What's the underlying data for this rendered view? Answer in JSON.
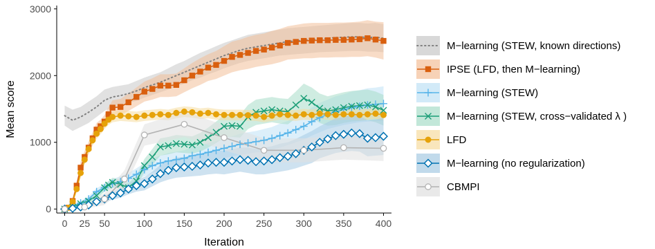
{
  "chart_data": {
    "type": "line",
    "title": "",
    "xlabel": "Iteration",
    "ylabel": "Mean score",
    "xlim": [
      -10,
      410
    ],
    "ylim": [
      -60,
      3050
    ],
    "x_ticks": [
      0,
      25,
      50,
      100,
      150,
      200,
      250,
      300,
      350,
      400
    ],
    "y_ticks": [
      0,
      1000,
      2000,
      3000
    ],
    "grid": false,
    "legend_position": "right",
    "series": [
      {
        "name": "M−learning (STEW, known directions)",
        "color": "#808080",
        "style": "dotted",
        "marker": "none",
        "band": "#c8c8c8",
        "x": [
          0,
          10,
          20,
          30,
          40,
          50,
          60,
          70,
          80,
          90,
          100,
          110,
          120,
          130,
          140,
          150,
          160,
          170,
          180,
          190,
          200,
          210,
          220,
          230,
          240,
          250,
          260,
          270,
          280,
          290,
          300,
          310,
          320,
          330,
          340,
          350,
          360,
          370,
          380,
          390,
          400
        ],
        "y": [
          1400,
          1330,
          1380,
          1450,
          1530,
          1630,
          1680,
          1700,
          1730,
          1770,
          1820,
          1860,
          1900,
          1950,
          2000,
          2050,
          2100,
          2150,
          2200,
          2250,
          2300,
          2340,
          2380,
          2410,
          2430,
          2450,
          2470,
          2490,
          2510,
          2520,
          2530,
          2540,
          2550,
          2560,
          2570,
          2575,
          2580,
          2580,
          2570,
          2575,
          2560
        ],
        "lower": [
          1250,
          1170,
          1230,
          1290,
          1380,
          1470,
          1530,
          1560,
          1590,
          1620,
          1670,
          1710,
          1750,
          1790,
          1840,
          1880,
          1930,
          1970,
          2020,
          2060,
          2110,
          2150,
          2190,
          2220,
          2240,
          2260,
          2280,
          2300,
          2310,
          2320,
          2330,
          2340,
          2350,
          2355,
          2360,
          2365,
          2370,
          2370,
          2360,
          2360,
          2350
        ],
        "upper": [
          1550,
          1490,
          1530,
          1610,
          1690,
          1790,
          1830,
          1850,
          1870,
          1920,
          1970,
          2010,
          2050,
          2110,
          2170,
          2220,
          2280,
          2340,
          2390,
          2440,
          2490,
          2530,
          2570,
          2610,
          2630,
          2650,
          2670,
          2690,
          2710,
          2720,
          2730,
          2740,
          2750,
          2760,
          2770,
          2780,
          2790,
          2790,
          2780,
          2790,
          2770
        ]
      },
      {
        "name": "IPSE (LFD, then M−learning)",
        "color": "#d95f0e",
        "style": "solid",
        "marker": "square",
        "band": "#f3bf99",
        "x": [
          0,
          5,
          10,
          15,
          20,
          25,
          30,
          35,
          40,
          45,
          50,
          55,
          60,
          70,
          80,
          90,
          100,
          110,
          120,
          130,
          140,
          150,
          160,
          170,
          180,
          190,
          200,
          210,
          220,
          230,
          240,
          250,
          260,
          270,
          280,
          290,
          300,
          310,
          320,
          330,
          340,
          350,
          360,
          370,
          380,
          390,
          400
        ],
        "y": [
          0,
          20,
          120,
          350,
          620,
          780,
          920,
          1060,
          1190,
          1240,
          1310,
          1420,
          1520,
          1530,
          1600,
          1680,
          1760,
          1800,
          1850,
          1850,
          1860,
          1930,
          2000,
          2060,
          2120,
          2160,
          2220,
          2280,
          2310,
          2340,
          2370,
          2390,
          2420,
          2450,
          2490,
          2505,
          2520,
          2525,
          2530,
          2530,
          2535,
          2535,
          2540,
          2545,
          2560,
          2540,
          2520
        ],
        "lower": [
          0,
          10,
          80,
          280,
          530,
          690,
          830,
          970,
          1090,
          1140,
          1210,
          1310,
          1410,
          1410,
          1470,
          1540,
          1610,
          1640,
          1680,
          1680,
          1690,
          1750,
          1810,
          1860,
          1920,
          1950,
          2000,
          2050,
          2080,
          2100,
          2130,
          2150,
          2170,
          2200,
          2240,
          2250,
          2260,
          2260,
          2270,
          2270,
          2275,
          2275,
          2280,
          2280,
          2290,
          2270,
          2240
        ],
        "upper": [
          0,
          30,
          160,
          420,
          710,
          870,
          1010,
          1150,
          1290,
          1340,
          1410,
          1530,
          1630,
          1650,
          1730,
          1820,
          1910,
          1960,
          2020,
          2020,
          2030,
          2110,
          2190,
          2260,
          2320,
          2370,
          2440,
          2510,
          2540,
          2580,
          2610,
          2630,
          2670,
          2700,
          2740,
          2760,
          2780,
          2790,
          2790,
          2790,
          2795,
          2795,
          2800,
          2810,
          2830,
          2810,
          2800
        ]
      },
      {
        "name": "M−learning (STEW)",
        "color": "#56b4e9",
        "style": "solid",
        "marker": "plus",
        "band": "#bfe1f5",
        "x": [
          0,
          10,
          20,
          30,
          40,
          50,
          60,
          70,
          80,
          90,
          100,
          110,
          120,
          130,
          140,
          150,
          160,
          170,
          180,
          190,
          200,
          210,
          220,
          230,
          240,
          250,
          260,
          270,
          280,
          290,
          300,
          310,
          320,
          330,
          340,
          350,
          360,
          370,
          380,
          390,
          400
        ],
        "y": [
          0,
          40,
          90,
          150,
          260,
          320,
          380,
          410,
          460,
          520,
          590,
          650,
          690,
          720,
          740,
          760,
          800,
          820,
          850,
          880,
          910,
          940,
          970,
          990,
          1010,
          1030,
          1060,
          1100,
          1140,
          1190,
          1240,
          1310,
          1370,
          1420,
          1460,
          1490,
          1520,
          1540,
          1560,
          1570,
          1580
        ],
        "lower": [
          0,
          20,
          60,
          110,
          210,
          260,
          310,
          330,
          380,
          430,
          490,
          540,
          580,
          600,
          620,
          640,
          670,
          690,
          710,
          740,
          760,
          790,
          810,
          830,
          850,
          860,
          890,
          920,
          960,
          1000,
          1040,
          1100,
          1150,
          1200,
          1230,
          1260,
          1280,
          1300,
          1310,
          1320,
          1320
        ],
        "upper": [
          0,
          60,
          120,
          190,
          310,
          380,
          450,
          490,
          540,
          610,
          690,
          760,
          800,
          840,
          860,
          880,
          930,
          950,
          990,
          1020,
          1060,
          1090,
          1130,
          1150,
          1170,
          1200,
          1230,
          1280,
          1320,
          1380,
          1440,
          1520,
          1590,
          1640,
          1690,
          1720,
          1760,
          1780,
          1810,
          1820,
          1840
        ]
      },
      {
        "name": "M−learning (STEW, cross−validated λ )",
        "color": "#1b9e77",
        "style": "solid",
        "marker": "x",
        "band": "#a8ddc9",
        "x": [
          0,
          10,
          20,
          30,
          40,
          50,
          55,
          60,
          70,
          80,
          90,
          100,
          110,
          120,
          130,
          140,
          150,
          160,
          170,
          180,
          190,
          200,
          210,
          220,
          230,
          240,
          250,
          260,
          270,
          280,
          290,
          300,
          310,
          320,
          330,
          340,
          350,
          360,
          370,
          380,
          390,
          400
        ],
        "y": [
          0,
          30,
          80,
          120,
          200,
          320,
          360,
          400,
          370,
          320,
          420,
          650,
          780,
          930,
          950,
          980,
          970,
          960,
          1000,
          1070,
          1150,
          1240,
          1250,
          1240,
          1380,
          1450,
          1470,
          1490,
          1470,
          1460,
          1560,
          1660,
          1600,
          1510,
          1470,
          1490,
          1520,
          1540,
          1550,
          1560,
          1530,
          1480
        ],
        "lower": [
          0,
          10,
          50,
          80,
          150,
          260,
          300,
          330,
          300,
          250,
          340,
          550,
          660,
          800,
          820,
          850,
          840,
          830,
          860,
          920,
          990,
          1070,
          1080,
          1070,
          1200,
          1260,
          1280,
          1300,
          1280,
          1270,
          1360,
          1440,
          1380,
          1290,
          1250,
          1260,
          1290,
          1310,
          1320,
          1330,
          1300,
          1250
        ],
        "upper": [
          0,
          50,
          110,
          160,
          250,
          380,
          420,
          470,
          440,
          390,
          500,
          750,
          900,
          1060,
          1080,
          1110,
          1100,
          1090,
          1140,
          1220,
          1310,
          1410,
          1420,
          1410,
          1560,
          1640,
          1660,
          1680,
          1660,
          1650,
          1760,
          1880,
          1820,
          1730,
          1690,
          1720,
          1750,
          1770,
          1780,
          1790,
          1760,
          1710
        ]
      },
      {
        "name": "LFD",
        "color": "#e6a20a",
        "style": "solid",
        "marker": "circle",
        "band": "#f6dc9f",
        "x": [
          0,
          5,
          10,
          15,
          20,
          25,
          30,
          35,
          40,
          45,
          50,
          55,
          60,
          70,
          80,
          90,
          100,
          110,
          120,
          130,
          140,
          150,
          160,
          170,
          180,
          190,
          200,
          210,
          220,
          230,
          240,
          250,
          260,
          270,
          280,
          290,
          300,
          310,
          320,
          330,
          340,
          350,
          360,
          370,
          380,
          390,
          400
        ],
        "y": [
          0,
          20,
          110,
          300,
          540,
          740,
          900,
          1030,
          1130,
          1200,
          1280,
          1340,
          1380,
          1400,
          1390,
          1380,
          1400,
          1410,
          1420,
          1410,
          1440,
          1460,
          1450,
          1430,
          1440,
          1420,
          1410,
          1410,
          1410,
          1405,
          1400,
          1380,
          1400,
          1420,
          1410,
          1400,
          1420,
          1410,
          1430,
          1420,
          1410,
          1420,
          1420,
          1410,
          1420,
          1430,
          1410
        ],
        "lower": [
          0,
          10,
          80,
          250,
          470,
          660,
          820,
          950,
          1050,
          1120,
          1200,
          1260,
          1300,
          1320,
          1310,
          1300,
          1320,
          1330,
          1340,
          1330,
          1360,
          1380,
          1370,
          1350,
          1360,
          1340,
          1330,
          1330,
          1330,
          1325,
          1320,
          1300,
          1320,
          1340,
          1330,
          1320,
          1340,
          1330,
          1350,
          1340,
          1330,
          1340,
          1340,
          1330,
          1340,
          1350,
          1330
        ],
        "upper": [
          0,
          30,
          140,
          350,
          610,
          820,
          980,
          1110,
          1210,
          1280,
          1360,
          1420,
          1460,
          1480,
          1470,
          1460,
          1480,
          1490,
          1500,
          1490,
          1520,
          1540,
          1530,
          1510,
          1520,
          1500,
          1490,
          1490,
          1490,
          1485,
          1480,
          1460,
          1480,
          1500,
          1490,
          1480,
          1500,
          1490,
          1510,
          1500,
          1490,
          1500,
          1500,
          1490,
          1500,
          1510,
          1490
        ]
      },
      {
        "name": "M−learning (no regularization)",
        "color": "#0072b2",
        "style": "solid",
        "marker": "diamond",
        "band": "#a6cbe3",
        "x": [
          0,
          10,
          20,
          30,
          40,
          50,
          60,
          70,
          80,
          90,
          100,
          110,
          120,
          130,
          140,
          150,
          160,
          170,
          180,
          190,
          200,
          210,
          220,
          230,
          240,
          250,
          260,
          270,
          280,
          290,
          300,
          310,
          320,
          330,
          340,
          350,
          360,
          370,
          380,
          390,
          400
        ],
        "y": [
          0,
          10,
          30,
          60,
          110,
          150,
          200,
          240,
          300,
          350,
          380,
          450,
          530,
          580,
          620,
          630,
          640,
          660,
          690,
          700,
          700,
          720,
          740,
          730,
          710,
          720,
          740,
          770,
          790,
          830,
          880,
          930,
          1000,
          1050,
          1100,
          1120,
          1140,
          1130,
          1060,
          1070,
          1090
        ],
        "lower": [
          0,
          0,
          10,
          30,
          70,
          100,
          140,
          170,
          220,
          260,
          280,
          340,
          400,
          440,
          470,
          480,
          490,
          500,
          520,
          530,
          520,
          540,
          560,
          540,
          520,
          520,
          540,
          560,
          580,
          610,
          650,
          690,
          760,
          800,
          840,
          860,
          870,
          860,
          790,
          800,
          810
        ],
        "upper": [
          0,
          20,
          50,
          90,
          150,
          200,
          260,
          310,
          380,
          440,
          480,
          560,
          660,
          720,
          770,
          780,
          790,
          820,
          860,
          870,
          880,
          900,
          920,
          920,
          900,
          920,
          940,
          980,
          1000,
          1050,
          1110,
          1170,
          1240,
          1300,
          1360,
          1380,
          1410,
          1400,
          1330,
          1340,
          1370
        ]
      },
      {
        "name": "CBMPI",
        "color": "#b3b3b3",
        "style": "solid",
        "marker": "open-circle",
        "band": "#e0e0e0",
        "x": [
          0,
          25,
          50,
          75,
          100,
          150,
          200,
          250,
          300,
          350,
          400
        ],
        "y": [
          0,
          30,
          150,
          450,
          1110,
          1270,
          1070,
          880,
          880,
          920,
          910
        ],
        "lower": [
          0,
          0,
          60,
          320,
          950,
          1080,
          880,
          700,
          700,
          740,
          720
        ],
        "upper": [
          0,
          60,
          240,
          580,
          1270,
          1460,
          1260,
          1060,
          1060,
          1100,
          1100
        ]
      }
    ]
  }
}
